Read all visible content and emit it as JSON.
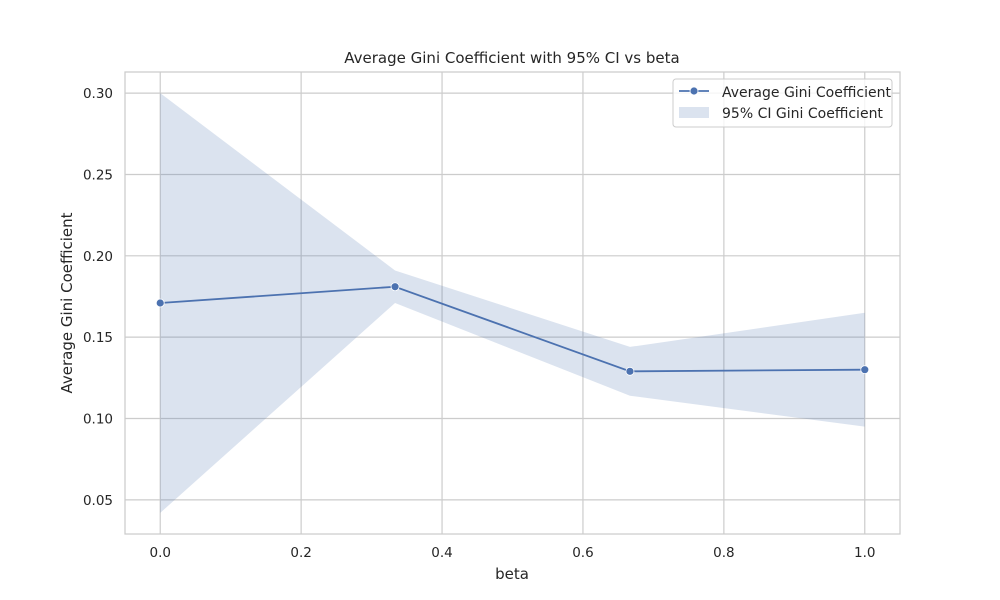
{
  "chart_data": {
    "type": "line",
    "title": "Average Gini Coefficient with 95% CI vs beta",
    "xlabel": "beta",
    "ylabel": "Average Gini Coefficient",
    "xlim": [
      -0.05,
      1.05
    ],
    "ylim": [
      0.029,
      0.313
    ],
    "xticks": [
      0.0,
      0.2,
      0.4,
      0.6,
      0.8,
      1.0
    ],
    "xtick_labels": [
      "0.0",
      "0.2",
      "0.4",
      "0.6",
      "0.8",
      "1.0"
    ],
    "yticks": [
      0.05,
      0.1,
      0.15,
      0.2,
      0.25,
      0.3
    ],
    "ytick_labels": [
      "0.05",
      "0.10",
      "0.15",
      "0.20",
      "0.25",
      "0.30"
    ],
    "grid": true,
    "legend_position": "top-right",
    "series": [
      {
        "name": "Average Gini Coefficient",
        "x": [
          0.0,
          0.3333,
          0.6667,
          1.0
        ],
        "values": [
          0.171,
          0.181,
          0.129,
          0.13
        ],
        "color": "#4c72b0"
      }
    ],
    "ci_band": {
      "name": "95% CI Gini Coefficient",
      "x": [
        0.0,
        0.3333,
        0.6667,
        1.0
      ],
      "lower": [
        0.042,
        0.171,
        0.114,
        0.095
      ],
      "upper": [
        0.3,
        0.191,
        0.144,
        0.165
      ],
      "color": "#4c72b0"
    }
  }
}
